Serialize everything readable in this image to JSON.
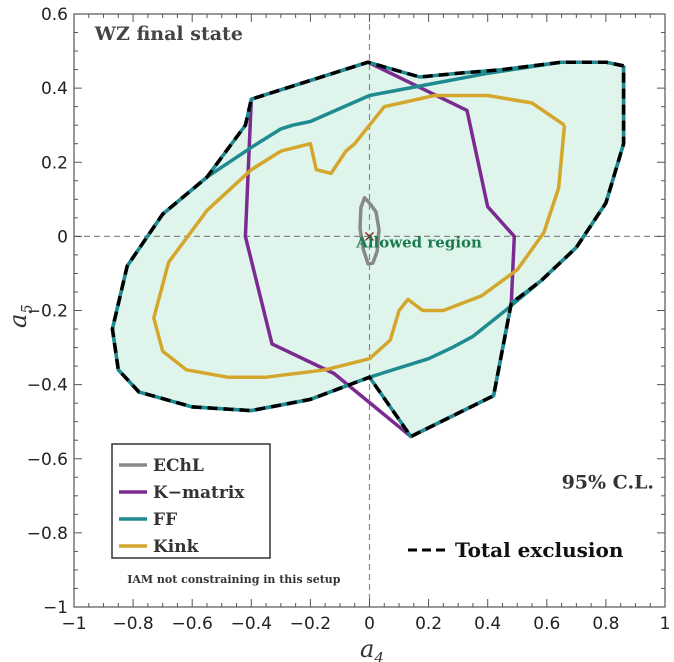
{
  "chart_data": {
    "type": "line",
    "title": "",
    "xlabel": "a",
    "xlabel_sub": "4",
    "ylabel": "a",
    "ylabel_sub": "5",
    "xlim": [
      -1,
      1
    ],
    "ylim": [
      -1,
      0.6
    ],
    "xticks": [
      -1,
      -0.8,
      -0.6,
      -0.4,
      -0.2,
      0,
      0.2,
      0.4,
      0.6,
      0.8,
      1
    ],
    "xtick_labels": [
      "−1",
      "−0.8",
      "−0.6",
      "−0.4",
      "−0.2",
      "0",
      "0.2",
      "0.4",
      "0.6",
      "0.8",
      "1"
    ],
    "yticks": [
      -1,
      -0.8,
      -0.6,
      -0.4,
      -0.2,
      0,
      0.2,
      0.4,
      0.6
    ],
    "ytick_labels": [
      "−1",
      "−0.8",
      "−0.6",
      "−0.4",
      "−0.2",
      "0",
      "0.2",
      "0.4",
      "0.6"
    ],
    "grid": false,
    "reference_lines": {
      "x": 0,
      "y": 0
    },
    "fill_color": "#dff5ec",
    "series": [
      {
        "name": "EChL",
        "color": "#888888",
        "points": [
          [
            0.0,
            0.09
          ],
          [
            0.022,
            0.066
          ],
          [
            0.032,
            0.018
          ],
          [
            0.026,
            -0.04
          ],
          [
            0.011,
            -0.072
          ],
          [
            -0.005,
            -0.074
          ],
          [
            -0.021,
            -0.035
          ],
          [
            -0.032,
            0.022
          ],
          [
            -0.029,
            0.078
          ],
          [
            -0.017,
            0.104
          ],
          [
            0.0,
            0.09
          ]
        ]
      },
      {
        "name": "K−matrix",
        "color": "#7b2a8f",
        "points": [
          [
            -0.005,
            0.47
          ],
          [
            0.33,
            0.34
          ],
          [
            0.4,
            0.08
          ],
          [
            0.49,
            0.0
          ],
          [
            0.48,
            -0.18
          ],
          [
            0.42,
            -0.43
          ],
          [
            0.14,
            -0.54
          ],
          [
            -0.12,
            -0.37
          ],
          [
            -0.33,
            -0.29
          ],
          [
            -0.42,
            0.0
          ],
          [
            -0.4,
            0.37
          ],
          [
            -0.005,
            0.47
          ]
        ]
      },
      {
        "name": "FF",
        "color": "#1f8a8f",
        "points": [
          [
            0.86,
            0.46
          ],
          [
            0.8,
            0.47
          ],
          [
            0.65,
            0.47
          ],
          [
            0.4,
            0.44
          ],
          [
            0.2,
            0.41
          ],
          [
            0.0,
            0.38
          ],
          [
            -0.2,
            0.31
          ],
          [
            -0.26,
            0.3
          ],
          [
            -0.3,
            0.29
          ],
          [
            -0.4,
            0.24
          ],
          [
            -0.55,
            0.16
          ],
          [
            -0.7,
            0.06
          ],
          [
            -0.82,
            -0.08
          ],
          [
            -0.87,
            -0.25
          ],
          [
            -0.85,
            -0.36
          ],
          [
            -0.78,
            -0.42
          ],
          [
            -0.6,
            -0.46
          ],
          [
            -0.4,
            -0.47
          ],
          [
            -0.2,
            -0.44
          ],
          [
            0.0,
            -0.38
          ],
          [
            0.2,
            -0.33
          ],
          [
            0.28,
            -0.3
          ],
          [
            0.35,
            -0.27
          ],
          [
            0.46,
            -0.2
          ],
          [
            0.58,
            -0.12
          ],
          [
            0.7,
            -0.03
          ],
          [
            0.8,
            0.09
          ],
          [
            0.86,
            0.25
          ],
          [
            0.86,
            0.46
          ]
        ]
      },
      {
        "name": "Kink",
        "color": "#d4a72c",
        "points": [
          [
            0.66,
            0.3
          ],
          [
            0.55,
            0.36
          ],
          [
            0.4,
            0.38
          ],
          [
            0.22,
            0.38
          ],
          [
            0.05,
            0.35
          ],
          [
            -0.05,
            0.25
          ],
          [
            -0.08,
            0.23
          ],
          [
            -0.13,
            0.17
          ],
          [
            -0.18,
            0.18
          ],
          [
            -0.2,
            0.25
          ],
          [
            -0.3,
            0.23
          ],
          [
            -0.4,
            0.18
          ],
          [
            -0.55,
            0.07
          ],
          [
            -0.68,
            -0.07
          ],
          [
            -0.73,
            -0.22
          ],
          [
            -0.7,
            -0.31
          ],
          [
            -0.62,
            -0.36
          ],
          [
            -0.48,
            -0.38
          ],
          [
            -0.35,
            -0.38
          ],
          [
            -0.15,
            -0.36
          ],
          [
            0.0,
            -0.33
          ],
          [
            0.07,
            -0.28
          ],
          [
            0.1,
            -0.2
          ],
          [
            0.13,
            -0.17
          ],
          [
            0.18,
            -0.2
          ],
          [
            0.25,
            -0.2
          ],
          [
            0.38,
            -0.16
          ],
          [
            0.5,
            -0.09
          ],
          [
            0.59,
            0.01
          ],
          [
            0.64,
            0.13
          ],
          [
            0.66,
            0.3
          ]
        ]
      },
      {
        "name": "Total exclusion",
        "color": "#000000",
        "dashed": true,
        "points": [
          [
            0.86,
            0.46
          ],
          [
            0.8,
            0.47
          ],
          [
            0.65,
            0.47
          ],
          [
            0.45,
            0.45
          ],
          [
            0.3,
            0.44
          ],
          [
            0.17,
            0.43
          ],
          [
            -0.005,
            0.47
          ],
          [
            -0.4,
            0.37
          ],
          [
            -0.42,
            0.3
          ],
          [
            -0.55,
            0.16
          ],
          [
            -0.7,
            0.06
          ],
          [
            -0.82,
            -0.08
          ],
          [
            -0.87,
            -0.25
          ],
          [
            -0.85,
            -0.36
          ],
          [
            -0.78,
            -0.42
          ],
          [
            -0.6,
            -0.46
          ],
          [
            -0.4,
            -0.47
          ],
          [
            -0.2,
            -0.44
          ],
          [
            0.0,
            -0.38
          ],
          [
            0.14,
            -0.54
          ],
          [
            0.42,
            -0.43
          ],
          [
            0.48,
            -0.18
          ],
          [
            0.58,
            -0.12
          ],
          [
            0.7,
            -0.03
          ],
          [
            0.8,
            0.09
          ],
          [
            0.86,
            0.25
          ],
          [
            0.86,
            0.46
          ]
        ]
      }
    ],
    "marker": {
      "x": 0.0,
      "y": 0.0,
      "symbol": "×",
      "color": "#8b1a1a"
    },
    "annotations": [
      {
        "text": "WZ final state",
        "x": -0.93,
        "y": 0.53,
        "color": "#444444",
        "size": 19
      },
      {
        "text": "Allowed region",
        "x": -0.045,
        "y": -0.03,
        "color": "#1c7a4f",
        "size": 15
      },
      {
        "text": "95% C.L.",
        "x": 0.65,
        "y": -0.68,
        "color": "#333333",
        "size": 19
      },
      {
        "text": "IAM not constraining in this setup",
        "x": -0.82,
        "y": -0.935,
        "color": "#333333",
        "size": 11
      }
    ],
    "legend": {
      "placement": "bottom-left",
      "entries": [
        "EChL",
        "K−matrix",
        "FF",
        "Kink"
      ]
    },
    "dashed_legend_entry": {
      "label": "Total exclusion",
      "placement": "bottom-right"
    }
  }
}
